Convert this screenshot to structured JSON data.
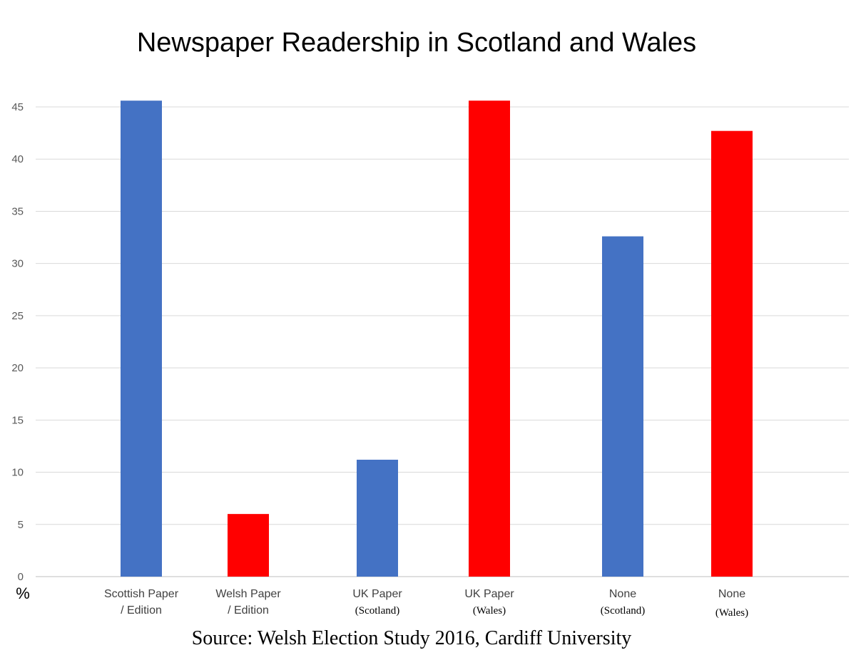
{
  "chart_data": {
    "type": "bar",
    "title": "Newspaper Readership in Scotland and Wales",
    "ylabel": "%",
    "ylim": [
      0,
      45
    ],
    "yticks": [
      0,
      5,
      10,
      15,
      20,
      25,
      30,
      35,
      40,
      45
    ],
    "grid": true,
    "categories": [
      {
        "line1": "Scottish Paper",
        "line2": "/ Edition"
      },
      {
        "line1": "Welsh Paper",
        "line2": "/ Edition"
      },
      {
        "line1": "UK Paper",
        "line2": "(Scotland)"
      },
      {
        "line1": "UK Paper",
        "line2": "(Wales)"
      },
      {
        "line1": "None",
        "line2": "(Scotland)"
      },
      {
        "line1": "None",
        "line2": "(Wales)"
      }
    ],
    "values": [
      45.6,
      6.0,
      11.2,
      45.6,
      32.6,
      42.7
    ],
    "bar_colors": [
      "#4472c4",
      "#ff0000",
      "#4472c4",
      "#ff0000",
      "#4472c4",
      "#ff0000"
    ],
    "source": "Source: Welsh Election Study 2016, Cardiff University"
  }
}
